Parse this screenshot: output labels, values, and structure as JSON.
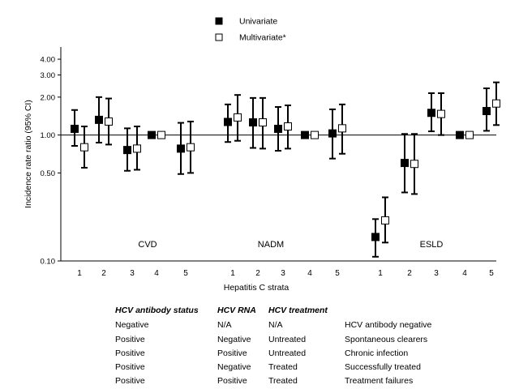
{
  "chart_data": {
    "type": "scatter",
    "subtype": "forest-plot-with-error-bars",
    "ylabel": "Incidence rate ratio (95% CI)",
    "xlabel": "Hepatitis C strata",
    "y_scale": "log",
    "ylim": [
      0.1,
      5.0
    ],
    "y_ticks": [
      0.1,
      0.5,
      1.0,
      2.0,
      3.0,
      4.0
    ],
    "y_tick_labels": [
      "0.10",
      "0.50",
      "1.00",
      "2.00",
      "3.00",
      "4.00"
    ],
    "reference_line": 1.0,
    "legend_position": "top-center",
    "series": [
      {
        "name": "Univariate",
        "marker": "filled-square",
        "color": "#000000"
      },
      {
        "name": "Multivariate*",
        "marker": "open-square",
        "color": "#000000"
      }
    ],
    "groups": [
      {
        "label": "CVD",
        "strata": [
          "1",
          "2",
          "3",
          "4",
          "5"
        ],
        "univariate": [
          {
            "est": 1.12,
            "lo": 0.82,
            "hi": 1.58
          },
          {
            "est": 1.32,
            "lo": 0.87,
            "hi": 2.0
          },
          {
            "est": 0.76,
            "lo": 0.52,
            "hi": 1.13
          },
          {
            "est": 1.0,
            "lo": 1.0,
            "hi": 1.0
          },
          {
            "est": 0.78,
            "lo": 0.49,
            "hi": 1.25
          }
        ],
        "multivariate": [
          {
            "est": 0.8,
            "lo": 0.55,
            "hi": 1.17
          },
          {
            "est": 1.28,
            "lo": 0.84,
            "hi": 1.95
          },
          {
            "est": 0.78,
            "lo": 0.53,
            "hi": 1.17
          },
          {
            "est": 1.0,
            "lo": 1.0,
            "hi": 1.0
          },
          {
            "est": 0.8,
            "lo": 0.5,
            "hi": 1.28
          }
        ]
      },
      {
        "label": "NADM",
        "strata": [
          "1",
          "2",
          "3",
          "4",
          "5"
        ],
        "univariate": [
          {
            "est": 1.27,
            "lo": 0.88,
            "hi": 1.75
          },
          {
            "est": 1.26,
            "lo": 0.79,
            "hi": 1.97
          },
          {
            "est": 1.12,
            "lo": 0.75,
            "hi": 1.67
          },
          {
            "est": 1.0,
            "lo": 1.0,
            "hi": 1.0
          },
          {
            "est": 1.03,
            "lo": 0.65,
            "hi": 1.6
          }
        ],
        "multivariate": [
          {
            "est": 1.38,
            "lo": 0.9,
            "hi": 2.08
          },
          {
            "est": 1.26,
            "lo": 0.78,
            "hi": 1.97
          },
          {
            "est": 1.17,
            "lo": 0.78,
            "hi": 1.72
          },
          {
            "est": 1.0,
            "lo": 1.0,
            "hi": 1.0
          },
          {
            "est": 1.13,
            "lo": 0.71,
            "hi": 1.75
          }
        ]
      },
      {
        "label": "ESLD",
        "strata": [
          "1",
          "2",
          "3",
          "4",
          "5"
        ],
        "univariate": [
          {
            "est": 0.155,
            "lo": 0.108,
            "hi": 0.215
          },
          {
            "est": 0.6,
            "lo": 0.35,
            "hi": 1.02
          },
          {
            "est": 1.5,
            "lo": 1.07,
            "hi": 2.15
          },
          {
            "est": 1.0,
            "lo": 1.0,
            "hi": 1.0
          },
          {
            "est": 1.55,
            "lo": 1.08,
            "hi": 2.35
          }
        ],
        "multivariate": [
          {
            "est": 0.21,
            "lo": 0.14,
            "hi": 0.32
          },
          {
            "est": 0.59,
            "lo": 0.34,
            "hi": 1.02
          },
          {
            "est": 1.47,
            "lo": 1.0,
            "hi": 2.15
          },
          {
            "est": 1.0,
            "lo": 1.0,
            "hi": 1.0
          },
          {
            "est": 1.78,
            "lo": 1.2,
            "hi": 2.62
          }
        ]
      }
    ]
  },
  "table": {
    "headers": [
      "HCV antibody status",
      "HCV RNA",
      "HCV treatment"
    ],
    "rows": [
      {
        "antibody": "Negative",
        "rna": "N/A",
        "treatment": "N/A",
        "description": "HCV antibody negative"
      },
      {
        "antibody": "Positive",
        "rna": "Negative",
        "treatment": "Untreated",
        "description": "Spontaneous clearers"
      },
      {
        "antibody": "Positive",
        "rna": "Positive",
        "treatment": "Untreated",
        "description": "Chronic infection"
      },
      {
        "antibody": "Positive",
        "rna": "Negative",
        "treatment": "Treated",
        "description": "Successfully treated"
      },
      {
        "antibody": "Positive",
        "rna": "Positive",
        "treatment": "Treated",
        "description": "Treatment failures"
      }
    ]
  }
}
